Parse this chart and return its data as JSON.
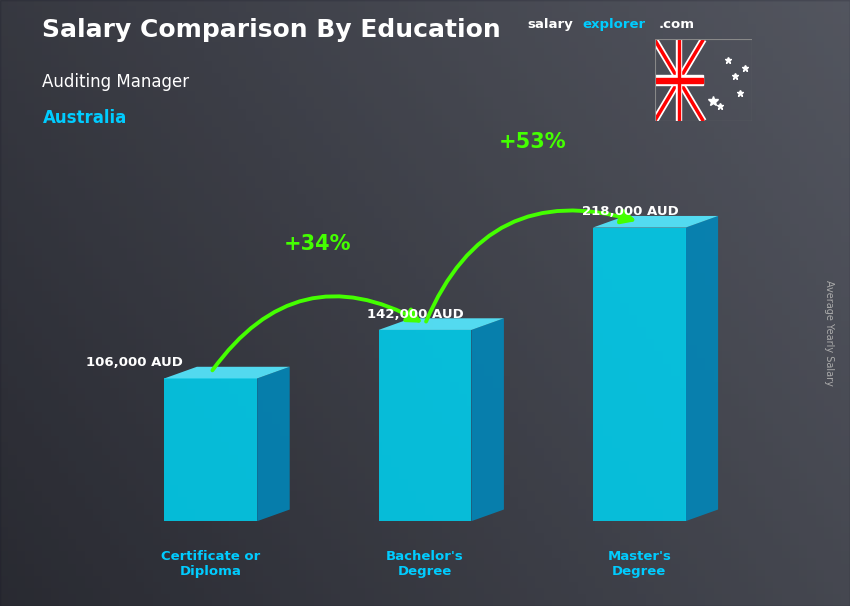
{
  "title_main": "Salary Comparison By Education",
  "title_sub": "Auditing Manager",
  "title_country": "Australia",
  "watermark_salary": "salary",
  "watermark_explorer": "explorer",
  "watermark_com": ".com",
  "ylabel": "Average Yearly Salary",
  "categories": [
    "Certificate or\nDiploma",
    "Bachelor's\nDegree",
    "Master's\nDegree"
  ],
  "values": [
    106000,
    142000,
    218000
  ],
  "value_labels": [
    "106,000 AUD",
    "142,000 AUD",
    "218,000 AUD"
  ],
  "pct_labels": [
    "+34%",
    "+53%"
  ],
  "bar_face_color": "#00cfee",
  "bar_top_color": "#55e8ff",
  "bar_side_color": "#0088bb",
  "text_color_white": "#ffffff",
  "text_color_cyan": "#00ccff",
  "text_color_green": "#44ff00",
  "arrow_color": "#44ff00",
  "bar_width": 0.13,
  "bar_positions": [
    0.2,
    0.5,
    0.8
  ],
  "ylim_max": 270000,
  "salary_label_color": "#ffffff",
  "category_label_color": "#00ccff",
  "bg_color": "#555566"
}
